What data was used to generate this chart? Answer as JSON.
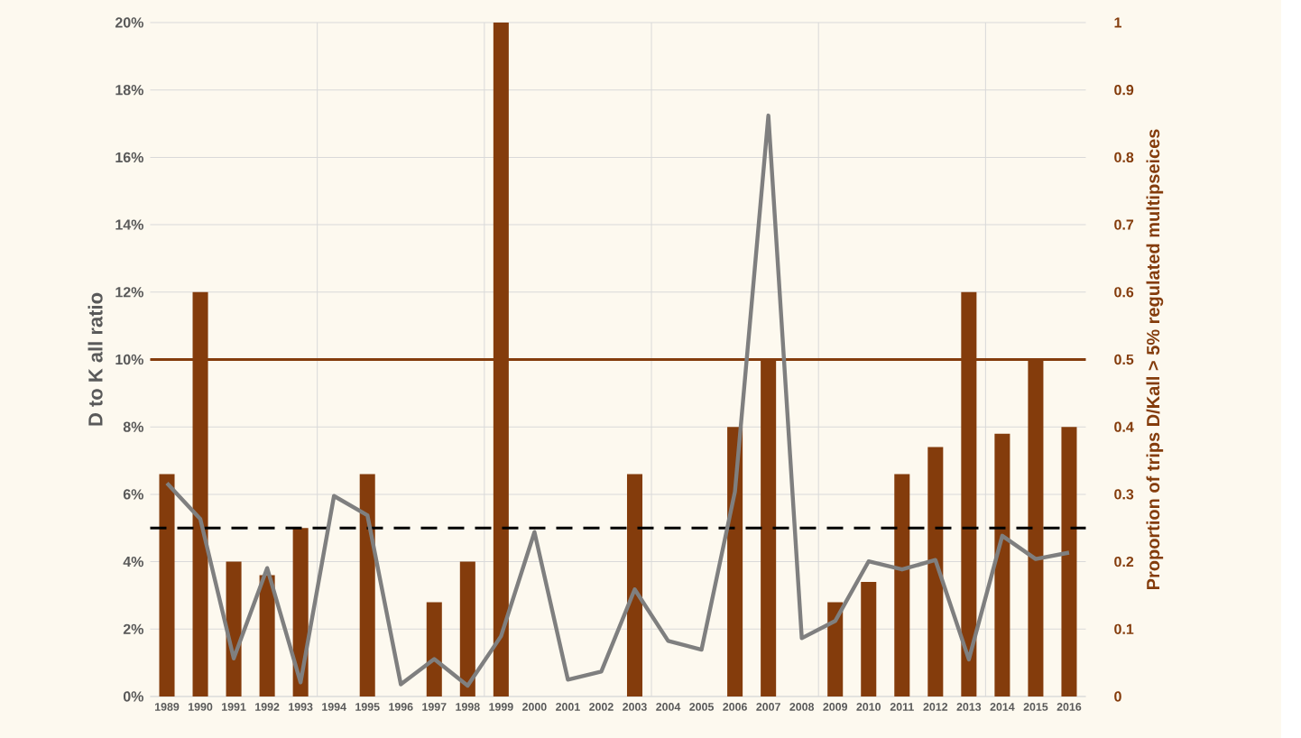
{
  "chart_data": {
    "type": "bar",
    "categories": [
      "1989",
      "1990",
      "1991",
      "1992",
      "1993",
      "1994",
      "1995",
      "1996",
      "1997",
      "1998",
      "1999",
      "2000",
      "2001",
      "2002",
      "2003",
      "2004",
      "2005",
      "2006",
      "2007",
      "2008",
      "2009",
      "2010",
      "2011",
      "2012",
      "2013",
      "2014",
      "2015",
      "2016"
    ],
    "series": [
      {
        "axis": "y2",
        "color": "#843c0c",
        "values": [
          0.33,
          0.6,
          0.2,
          0.18,
          0.25,
          null,
          0.33,
          null,
          0.14,
          0.2,
          1,
          null,
          null,
          null,
          0.33,
          null,
          null,
          0.4,
          0.5,
          null,
          0.14,
          0.17,
          0.33,
          0.37,
          0.6,
          0.39,
          0.5,
          0.4
        ]
      },
      {
        "type": "line",
        "color": "#7f7f7f",
        "values": [
          6.33,
          5.27,
          1.13,
          3.81,
          0.42,
          5.95,
          5.38,
          0.36,
          1.11,
          0.32,
          1.79,
          4.88,
          0.5,
          0.74,
          3.18,
          1.65,
          1.39,
          6.08,
          17.24,
          1.73,
          2.24,
          4.01,
          3.77,
          4.05,
          1.1,
          4.77,
          4.08,
          4.27
        ]
      }
    ],
    "ylabel": "D to K all ratio",
    "y2label": "Proportion of trips D/Kall > 5% regulated multipseices",
    "ylim": [
      0,
      20
    ],
    "yticks": [
      {
        "value": 0,
        "label": "0%"
      },
      {
        "value": 2,
        "label": "2%"
      },
      {
        "value": 4,
        "label": "4%"
      },
      {
        "value": 6,
        "label": "6%"
      },
      {
        "value": 8,
        "label": "8%"
      },
      {
        "value": 10,
        "label": "10%"
      },
      {
        "value": 12,
        "label": "12%"
      },
      {
        "value": 14,
        "label": "14%"
      },
      {
        "value": 16,
        "label": "16%"
      },
      {
        "value": 18,
        "label": "18%"
      },
      {
        "value": 20,
        "label": "20%"
      }
    ],
    "y2lim": [
      0,
      1
    ],
    "y2ticks": [
      0,
      0.1,
      0.2,
      0.3,
      0.4,
      0.5,
      0.6,
      0.7,
      0.8,
      0.9,
      1
    ],
    "ref_lines": [
      {
        "axis": "y2",
        "value": 0.5,
        "color": "#843c0c",
        "line_style": "solid"
      },
      {
        "axis": "y",
        "value": 5,
        "color": "#000000",
        "line_style": "dashed"
      }
    ],
    "grid": true
  }
}
